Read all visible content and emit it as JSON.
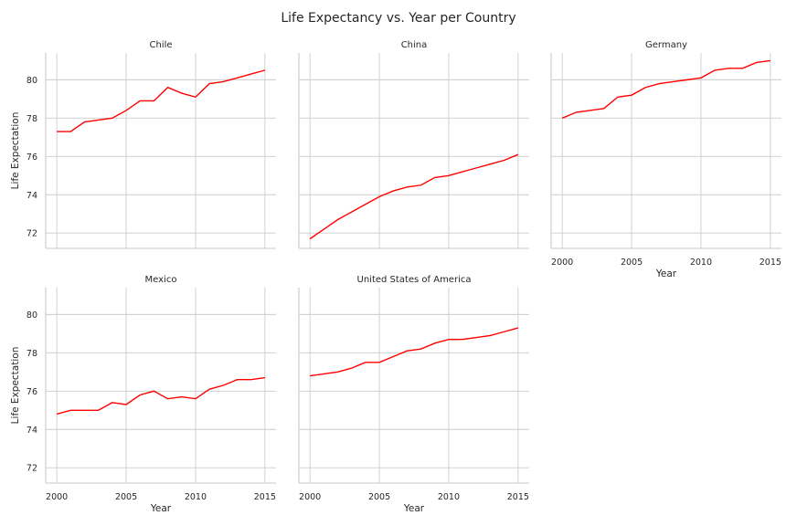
{
  "chart_data": {
    "type": "line",
    "title": "Life Expectancy vs. Year per Country",
    "xlabel": "Year",
    "ylabel": "Life Expectation",
    "xlim": [
      1999.2,
      2015.8
    ],
    "ylim": [
      71.2,
      81.4
    ],
    "xticks": [
      2000,
      2005,
      2010,
      2015
    ],
    "yticks": [
      72,
      74,
      76,
      78,
      80
    ],
    "grid": true,
    "line_color": "#ff0000",
    "panels": [
      {
        "name": "Chile",
        "x": [
          2000,
          2001,
          2002,
          2003,
          2004,
          2005,
          2006,
          2007,
          2008,
          2009,
          2010,
          2011,
          2012,
          2013,
          2014,
          2015
        ],
        "y": [
          77.3,
          77.3,
          77.8,
          77.9,
          78.0,
          78.4,
          78.9,
          78.9,
          79.6,
          79.3,
          79.1,
          79.8,
          79.9,
          80.1,
          80.3,
          80.5
        ]
      },
      {
        "name": "China",
        "x": [
          2000,
          2001,
          2002,
          2003,
          2004,
          2005,
          2006,
          2007,
          2008,
          2009,
          2010,
          2011,
          2012,
          2013,
          2014,
          2015
        ],
        "y": [
          71.7,
          72.2,
          72.7,
          73.1,
          73.5,
          73.9,
          74.2,
          74.4,
          74.5,
          74.9,
          75.0,
          75.2,
          75.4,
          75.6,
          75.8,
          76.1
        ]
      },
      {
        "name": "Germany",
        "x": [
          2000,
          2001,
          2002,
          2003,
          2004,
          2005,
          2006,
          2007,
          2008,
          2009,
          2010,
          2011,
          2012,
          2013,
          2014,
          2015
        ],
        "y": [
          78.0,
          78.3,
          78.4,
          78.5,
          79.1,
          79.2,
          79.6,
          79.8,
          79.9,
          80.0,
          80.1,
          80.5,
          80.6,
          80.6,
          80.9,
          81.0
        ]
      },
      {
        "name": "Mexico",
        "x": [
          2000,
          2001,
          2002,
          2003,
          2004,
          2005,
          2006,
          2007,
          2008,
          2009,
          2010,
          2011,
          2012,
          2013,
          2014,
          2015
        ],
        "y": [
          74.8,
          75.0,
          75.0,
          75.0,
          75.4,
          75.3,
          75.8,
          76.0,
          75.6,
          75.7,
          75.6,
          76.1,
          76.3,
          76.6,
          76.6,
          76.7
        ]
      },
      {
        "name": "United States of America",
        "x": [
          2000,
          2001,
          2002,
          2003,
          2004,
          2005,
          2006,
          2007,
          2008,
          2009,
          2010,
          2011,
          2012,
          2013,
          2014,
          2015
        ],
        "y": [
          76.8,
          76.9,
          77.0,
          77.2,
          77.5,
          77.5,
          77.8,
          78.1,
          78.2,
          78.5,
          78.7,
          78.7,
          78.8,
          78.9,
          79.1,
          79.3
        ]
      }
    ]
  }
}
